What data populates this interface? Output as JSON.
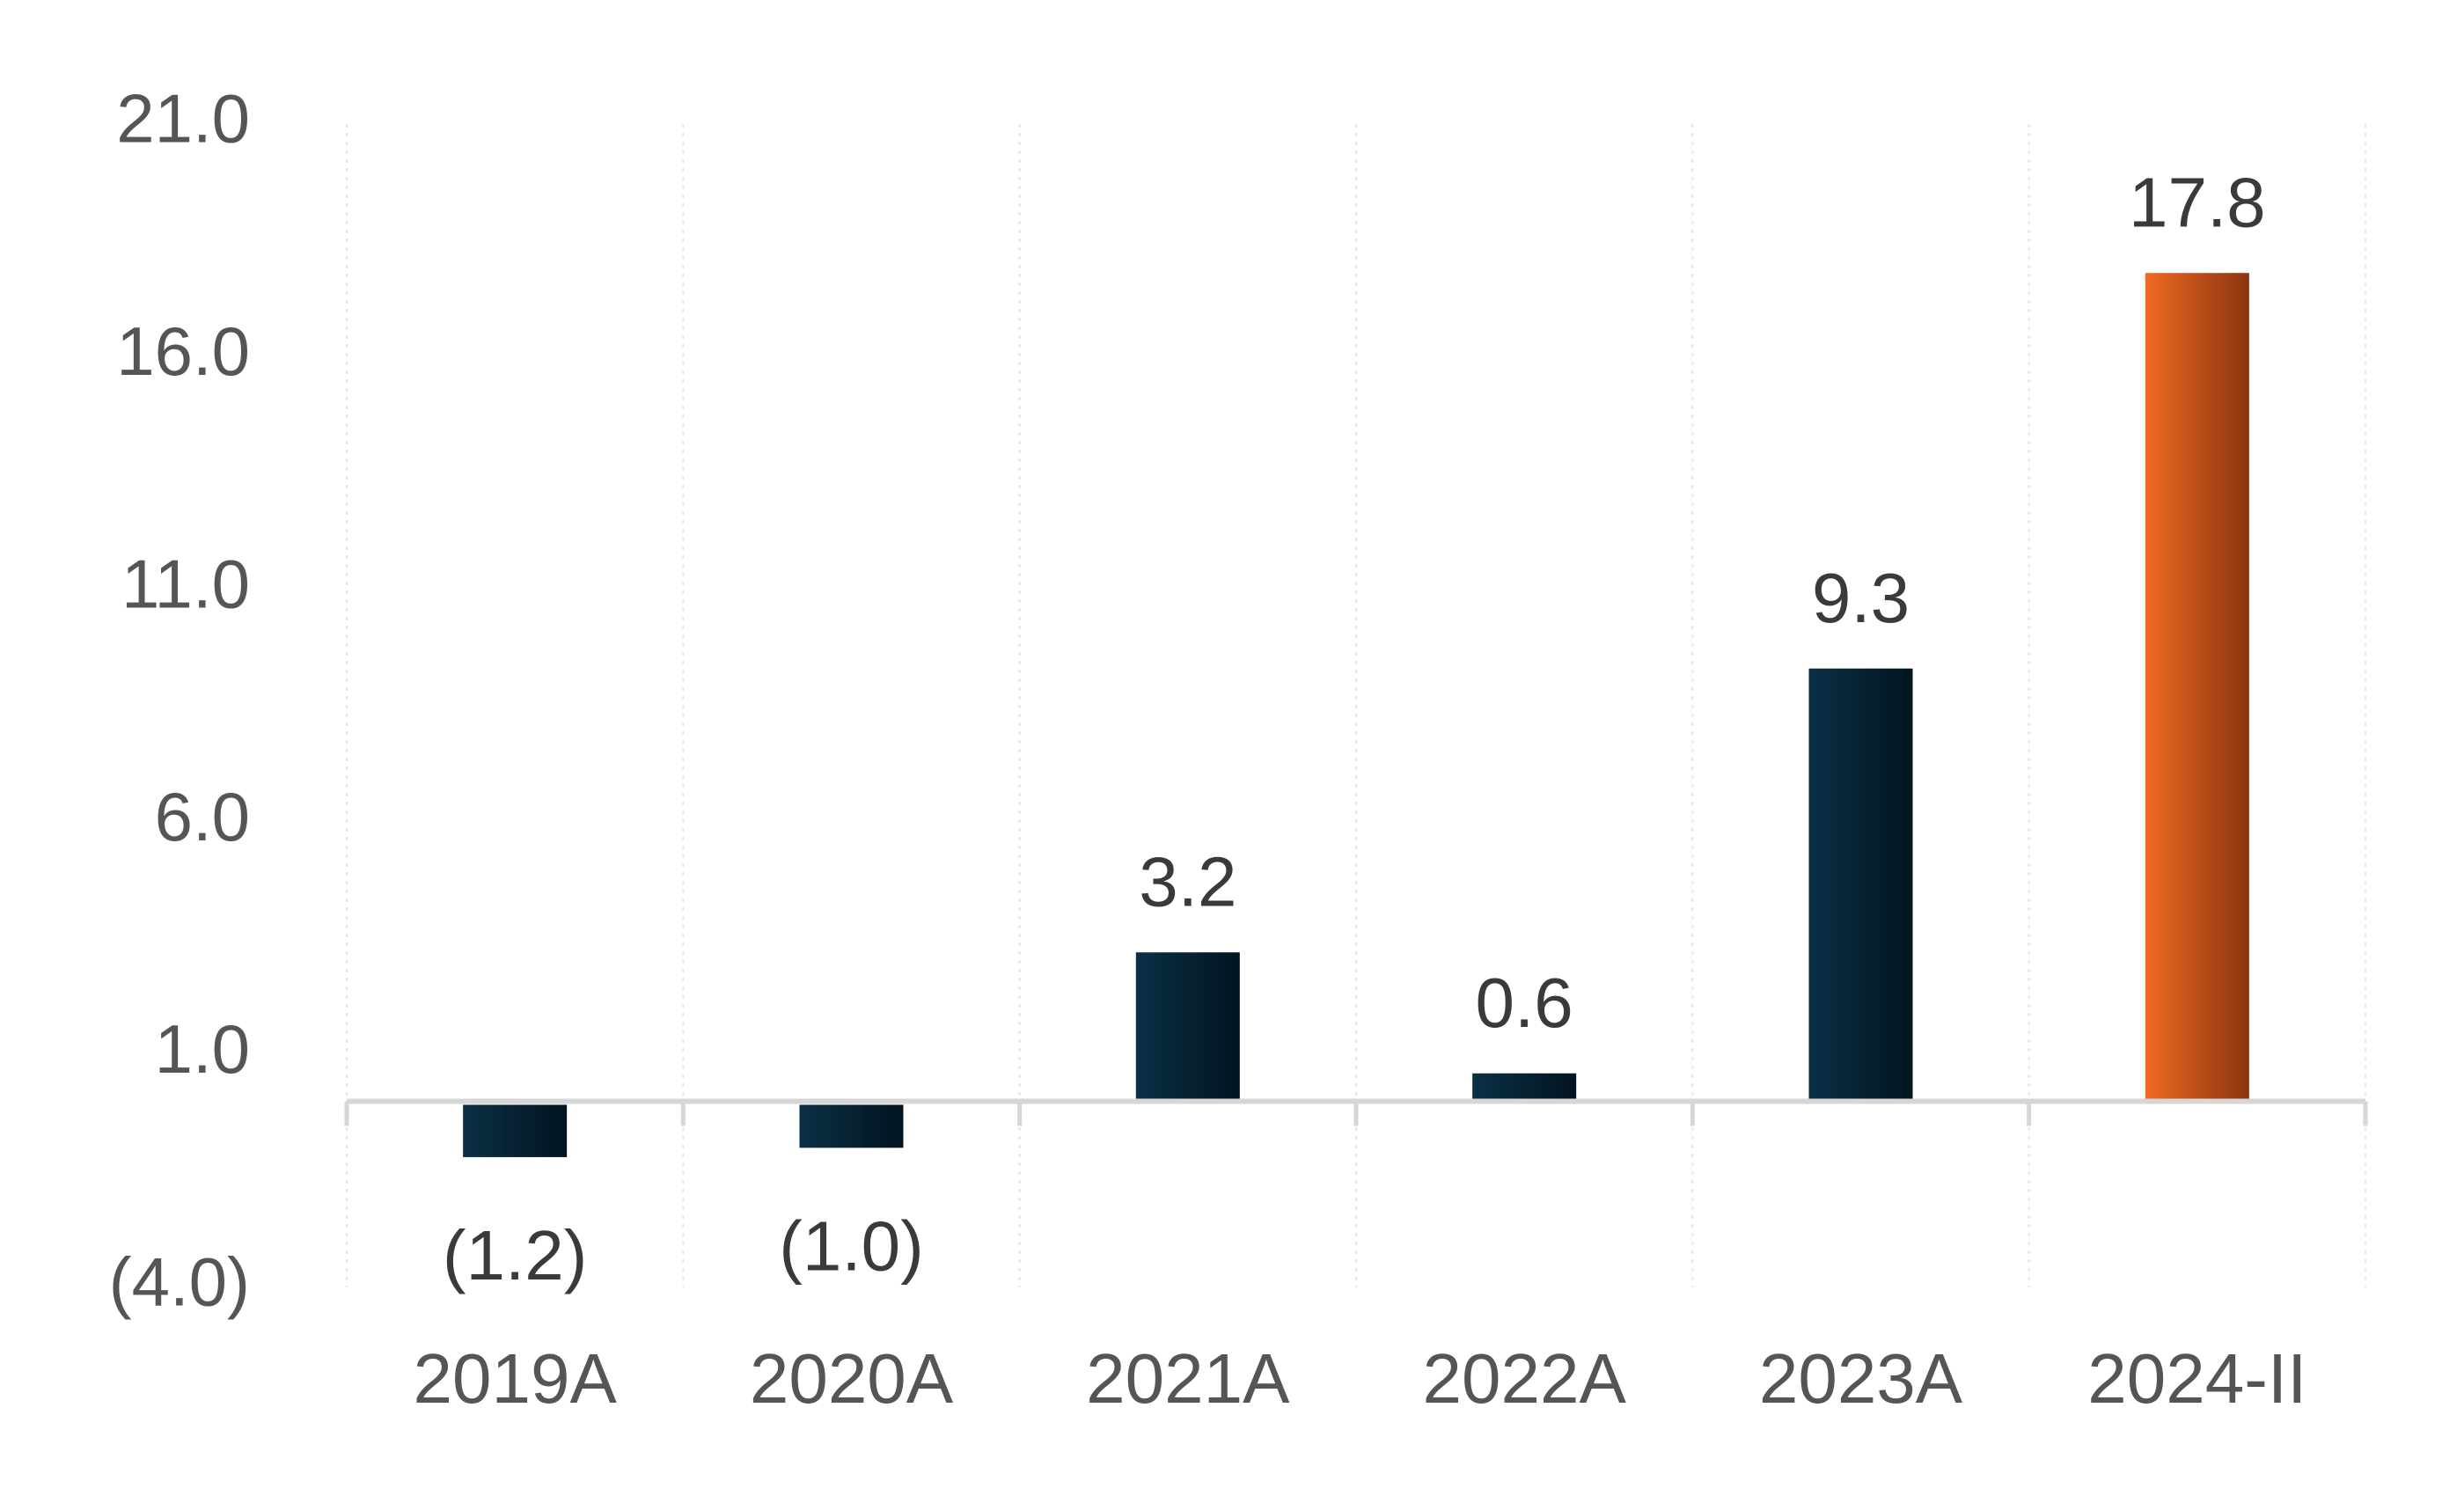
{
  "chart_data": {
    "type": "bar",
    "categories": [
      "2019A",
      "2020A",
      "2021A",
      "2022A",
      "2023A",
      "2024-II"
    ],
    "values": [
      -1.2,
      -1.0,
      3.2,
      0.6,
      9.3,
      17.8
    ],
    "value_labels": [
      "(1.2)",
      "(1.0)",
      "3.2",
      "0.6",
      "9.3",
      "17.8"
    ],
    "title": "",
    "xlabel": "",
    "ylabel": "",
    "ylim": [
      -4.0,
      21.0
    ],
    "yticks": [
      21.0,
      16.0,
      11.0,
      6.0,
      1.0,
      -4.0
    ],
    "ytick_labels": [
      "21.0",
      "16.0",
      "11.0",
      "6.0",
      "1.0",
      "(4.0)"
    ],
    "grid": "vertical dotted",
    "legend": "none",
    "colors": {
      "bar_dark_start": "#0a3045",
      "bar_dark_end": "#021420",
      "bar_highlight_start": "#f06a22",
      "bar_highlight_end": "#8a3410",
      "highlight_index": 5
    }
  }
}
